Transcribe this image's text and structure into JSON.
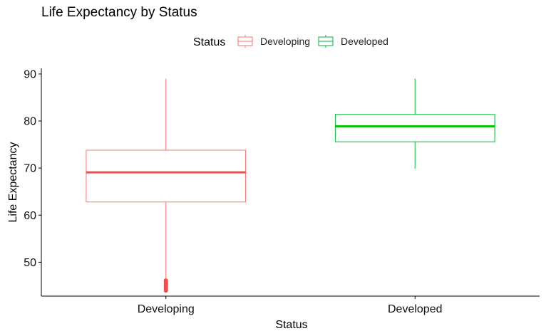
{
  "chart_data": {
    "type": "boxplot",
    "title": "Life Expectancy by Status",
    "xlabel": "Status",
    "ylabel": "Life Expectancy",
    "ylim": [
      42.8,
      91.2
    ],
    "yticks": [
      50,
      60,
      70,
      80,
      90
    ],
    "legend": {
      "title": "Status",
      "position": "top"
    },
    "grid": false,
    "categories": [
      "Developing",
      "Developed"
    ],
    "series": [
      {
        "name": "Developing",
        "color": "#F8766D",
        "median_color": "#F24D4D",
        "whisker_low": 46.5,
        "q1": 62.8,
        "median": 69.1,
        "q3": 73.8,
        "whisker_high": 89.0,
        "outliers": [
          44.0,
          44.3,
          44.6,
          44.9,
          45.2,
          45.5,
          45.8,
          46.1
        ]
      },
      {
        "name": "Developed",
        "color": "#00BA38",
        "median_color": "#00C000",
        "whisker_low": 69.9,
        "q1": 75.6,
        "median": 78.9,
        "q3": 81.4,
        "whisker_high": 89.0,
        "outliers": []
      }
    ]
  }
}
